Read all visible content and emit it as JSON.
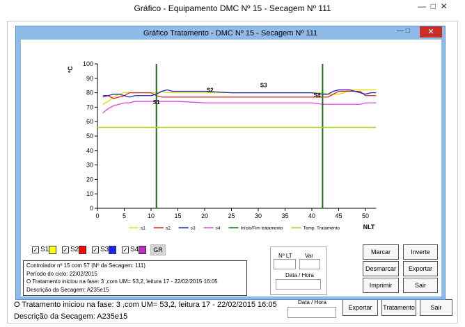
{
  "window": {
    "title": "Gráfico - Equipamento DMC Nº 15 - Secagem Nº 111"
  },
  "background": {
    "lines": [
      "O Tratamento iniciou na fase: 3 ,com UM= 53,2, leitura 17 - 22/02/2015 16:05",
      "Descrição da Secagem: A235e15"
    ],
    "date_label": "Data / Hora",
    "buttons": [
      "Exportar",
      "Tratamento",
      "Sair"
    ]
  },
  "dialog": {
    "title": "Gráfico Tratamento - DMC Nº 15 - Secagem Nº 111",
    "checkboxes": [
      {
        "label": "S1",
        "color": "#ffff00"
      },
      {
        "label": "S2",
        "color": "#ff0000"
      },
      {
        "label": "S3",
        "color": "#2020ff"
      },
      {
        "label": "S4",
        "color": "#c030c0"
      }
    ],
    "gr_button": "GR",
    "info": [
      "Controlador nº 15 com 57 (Nº da Secagem: 111)",
      "Período do ciclo: 22/02/2015",
      "O Tratamento iniciou na fase: 3 ,com UM= 53,2, leitura 17 - 22/02/2015 16:05",
      "Descrição da Secagem: A235e15"
    ],
    "fields": {
      "lt": "Nº LT",
      "var": "Var",
      "date": "Data / Hora"
    },
    "buttons": [
      "Marcar",
      "Inverte",
      "Desmarcar",
      "Exportar",
      "Imprimir",
      "Sair"
    ]
  },
  "chart_data": {
    "type": "line",
    "ylabel": "ºC",
    "xlabel": "NLT",
    "x": [
      1,
      2,
      3,
      4,
      5,
      6,
      7,
      8,
      9,
      10,
      11,
      12,
      13,
      14,
      15,
      20,
      25,
      30,
      35,
      40,
      42,
      43,
      44,
      45,
      46,
      47,
      48,
      49,
      50,
      51,
      52
    ],
    "series": [
      {
        "name": "s1",
        "color": "#e0e000",
        "values": [
          72,
          74,
          77,
          79,
          80,
          80,
          80,
          80,
          80,
          80,
          80,
          81,
          80,
          80,
          80,
          80,
          80,
          80,
          80,
          80,
          80,
          79,
          79,
          79,
          80,
          82,
          82,
          82,
          82,
          82,
          82
        ]
      },
      {
        "name": "s2",
        "color": "#e02020",
        "values": [
          77,
          78,
          76,
          77,
          78,
          80,
          80,
          80,
          80,
          80,
          78,
          77,
          77,
          77,
          77,
          77,
          77,
          77,
          77,
          77,
          77,
          77,
          79,
          81,
          81,
          81,
          81,
          81,
          78,
          78,
          78
        ]
      },
      {
        "name": "s3",
        "color": "#2020c0",
        "values": [
          78,
          78,
          79,
          79,
          78,
          77,
          78,
          78,
          78,
          78,
          79,
          81,
          82,
          81,
          81,
          81,
          80,
          80,
          80,
          80,
          79,
          79,
          81,
          82,
          82,
          82,
          81,
          80,
          79,
          80,
          80
        ]
      },
      {
        "name": "s4",
        "color": "#e040e0",
        "values": [
          66,
          69,
          71,
          72,
          73,
          73,
          74,
          74,
          74,
          74,
          74,
          74,
          74,
          74,
          74,
          73,
          73,
          73,
          73,
          73,
          72,
          72,
          72,
          72,
          72,
          72,
          72,
          72,
          73,
          73,
          73
        ]
      }
    ],
    "vlines": {
      "name": "Início/Fim tratamento",
      "color": "#1a6e1a",
      "values": [
        11,
        42
      ]
    },
    "hline": {
      "name": "Temp. Tratamento",
      "color": "#a8d820",
      "value": 56
    },
    "annotations": [
      {
        "text": "S1",
        "x": 11,
        "y": 72
      },
      {
        "text": "S2",
        "x": 21,
        "y": 80.5
      },
      {
        "text": "S3",
        "x": 31,
        "y": 84
      },
      {
        "text": "S4",
        "x": 41,
        "y": 77
      }
    ],
    "xlim": [
      0,
      52
    ],
    "ylim": [
      0,
      100
    ],
    "xticks": [
      0,
      5,
      10,
      15,
      20,
      25,
      30,
      35,
      40,
      45,
      50
    ],
    "yticks": [
      0,
      10,
      20,
      30,
      40,
      50,
      60,
      70,
      80,
      90,
      100
    ]
  }
}
